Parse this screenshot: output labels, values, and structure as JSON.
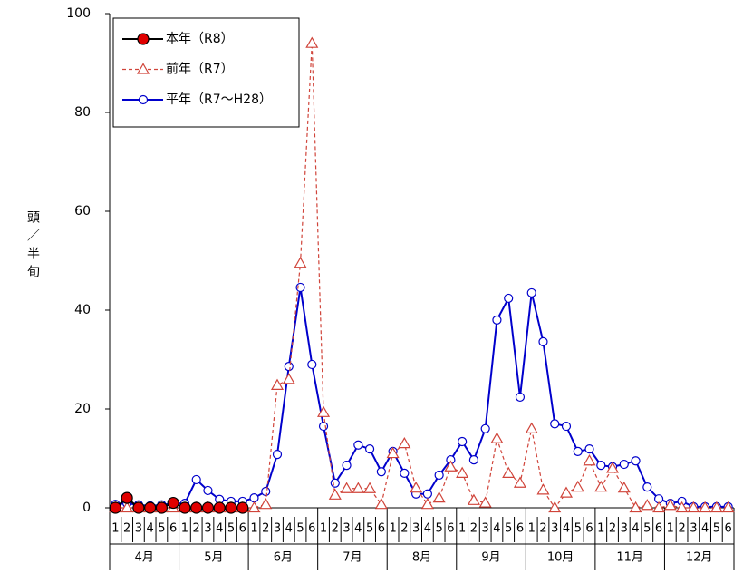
{
  "chart_data": {
    "type": "line",
    "y_label": "頭／半旬",
    "categories": [
      "1",
      "2",
      "3",
      "4",
      "5",
      "6",
      "1",
      "2",
      "3",
      "4",
      "5",
      "6",
      "1",
      "2",
      "3",
      "4",
      "5",
      "6",
      "1",
      "2",
      "3",
      "4",
      "5",
      "6",
      "1",
      "2",
      "3",
      "4",
      "5",
      "6",
      "1",
      "2",
      "3",
      "4",
      "5",
      "6",
      "1",
      "2",
      "3",
      "4",
      "5",
      "6",
      "1",
      "2",
      "3",
      "4",
      "5",
      "6",
      "1",
      "2",
      "3",
      "4",
      "5",
      "6"
    ],
    "groups": [
      "4月",
      "5月",
      "6月",
      "7月",
      "8月",
      "9月",
      "10月",
      "11月",
      "12月"
    ],
    "group_size": 6,
    "ylim": [
      0,
      100
    ],
    "yticks": [
      0,
      20,
      40,
      60,
      80,
      100
    ],
    "legend": "top-left",
    "series": [
      {
        "name": "本年（R8）",
        "color": "#000000",
        "marker": "circle",
        "marker_fill": "#e00000",
        "marker_size": 6,
        "line_style": "solid",
        "values": [
          0,
          2,
          0,
          0,
          0,
          1,
          0,
          0,
          0,
          0,
          0,
          0,
          null,
          null,
          null,
          null,
          null,
          null,
          null,
          null,
          null,
          null,
          null,
          null,
          null,
          null,
          null,
          null,
          null,
          null,
          null,
          null,
          null,
          null,
          null,
          null,
          null,
          null,
          null,
          null,
          null,
          null,
          null,
          null,
          null,
          null,
          null,
          null,
          null,
          null,
          null,
          null,
          null,
          null
        ]
      },
      {
        "name": "前年（R7）",
        "color": "#d0443a",
        "marker": "triangle",
        "marker_fill": "#ffffff",
        "marker_size": 6,
        "line_style": "dashed",
        "values": [
          0,
          0,
          0,
          0,
          0,
          0,
          0,
          0,
          0,
          0,
          0,
          0,
          0,
          0.7,
          24.8,
          26,
          49.5,
          94,
          19.3,
          2.6,
          3.9,
          3.9,
          3.9,
          0.7,
          11,
          13,
          4,
          0.7,
          2,
          8.3,
          7,
          1.5,
          1,
          14,
          7,
          5,
          16,
          3.6,
          0,
          3,
          4.2,
          9.5,
          4.2,
          8,
          4,
          0,
          0.5,
          0,
          0.5,
          0,
          0,
          0,
          0,
          0
        ]
      },
      {
        "name": "平年（R7～H28）",
        "color": "#0000cc",
        "marker": "circle",
        "marker_fill": "#ffffff",
        "marker_size": 4.5,
        "line_style": "solid",
        "values": [
          0.7,
          0.9,
          0.6,
          0.4,
          0.6,
          0.9,
          0.9,
          5.7,
          3.5,
          1.7,
          1.3,
          1.3,
          2,
          3.3,
          10.8,
          28.6,
          44.6,
          29,
          16.5,
          5,
          8.6,
          12.7,
          11.9,
          7.3,
          11.4,
          7,
          2.8,
          2.8,
          6.6,
          9.7,
          13.4,
          9.7,
          16,
          38,
          42.4,
          22.4,
          43.5,
          33.6,
          17,
          16.5,
          11.4,
          11.9,
          8.6,
          8.3,
          8.8,
          9.5,
          4.2,
          1.8,
          0.9,
          1.3,
          0.2,
          0.2,
          0.2,
          0.2
        ]
      }
    ]
  }
}
